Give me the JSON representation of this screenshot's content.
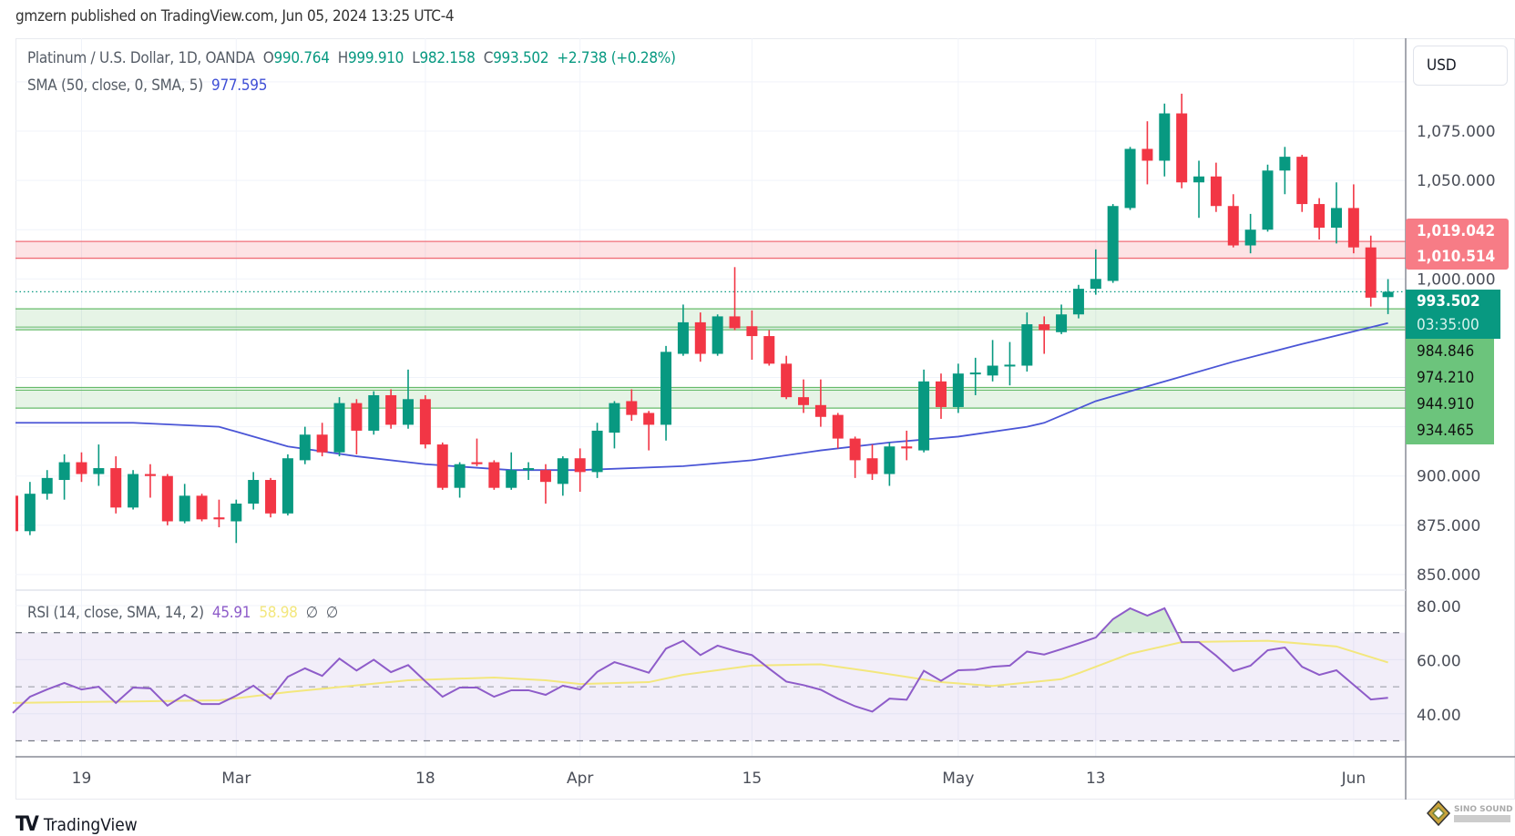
{
  "published": "gmzern published on TradingView.com, Jun 05, 2024 13:25 UTC-4",
  "legend": {
    "symbol": "Platinum / U.S. Dollar, 1D, OANDA",
    "o_label": "O",
    "o_value": "990.764",
    "h_label": "H",
    "h_value": "999.910",
    "l_label": "L",
    "l_value": "982.158",
    "c_label": "C",
    "c_value": "993.502",
    "change": "+2.738 (+0.28%)",
    "sma_label": "SMA (50, close, 0, SMA, 5)",
    "sma_value": "977.595",
    "rsi_label": "RSI (14, close, SMA, 14, 2)",
    "rsi_value": "45.91",
    "rsi_sma_value": "58.98",
    "rsi_extra1": "∅",
    "rsi_extra2": "∅"
  },
  "currency_button": "USD",
  "price_tags": {
    "resistance_top": "1,019.042",
    "resistance_bottom": "1,010.514",
    "last_price": "993.502",
    "countdown": "03:35:00",
    "support1_top": "984.846",
    "support1_bottom": "974.210",
    "support2_top": "944.910",
    "support2_bottom": "934.465"
  },
  "branding": {
    "tradingview": "TradingView",
    "watermark": "SINO SOUND"
  },
  "colors": {
    "up": "#089981",
    "down": "#f23645",
    "sma": "#4a55d6",
    "rsi": "#8e5cc9",
    "rsi_sma": "#f3e77d",
    "resistance": "#f7a1a8",
    "support": "#81c995"
  },
  "chart_data": [
    {
      "type": "candlestick",
      "symbol": "Platinum / U.S. Dollar, 1D, OANDA",
      "ylim": [
        845,
        1100
      ],
      "grid": true,
      "price_axis": {
        "ticks": [
          {
            "value": 1075,
            "label": "1,075.000"
          },
          {
            "value": 1050,
            "label": "1,050.000"
          },
          {
            "value": 1000,
            "label": "1,000.000"
          },
          {
            "value": 900,
            "label": "900.000"
          },
          {
            "value": 875,
            "label": "875.000"
          },
          {
            "value": 850,
            "label": "850.000"
          }
        ]
      },
      "time_axis": {
        "ticks": [
          {
            "date": "2024-02-19",
            "label": "19"
          },
          {
            "date": "2024-03-01",
            "label": "Mar"
          },
          {
            "date": "2024-03-18",
            "label": "18"
          },
          {
            "date": "2024-04-01",
            "label": "Apr"
          },
          {
            "date": "2024-04-15",
            "label": "15"
          },
          {
            "date": "2024-05-01",
            "label": "May"
          },
          {
            "date": "2024-05-13",
            "label": "13"
          },
          {
            "date": "2024-06-03",
            "label": "Jun"
          }
        ]
      },
      "zones": [
        {
          "kind": "resistance",
          "low": 1010.514,
          "high": 1019.042
        },
        {
          "kind": "support",
          "low": 974.21,
          "high": 984.846
        },
        {
          "kind": "support",
          "low": 934.465,
          "high": 944.91
        }
      ],
      "last_price": 993.502,
      "columns": [
        "date",
        "open",
        "high",
        "low",
        "close"
      ],
      "candles": [
        [
          "2024-02-13",
          890,
          893,
          871,
          872
        ],
        [
          "2024-02-14",
          872,
          897,
          870,
          891
        ],
        [
          "2024-02-15",
          891,
          903,
          888,
          899
        ],
        [
          "2024-02-16",
          898,
          911,
          888,
          907
        ],
        [
          "2024-02-19",
          907,
          912,
          897,
          901
        ],
        [
          "2024-02-20",
          901,
          916,
          895,
          904
        ],
        [
          "2024-02-21",
          904,
          910,
          881,
          884
        ],
        [
          "2024-02-22",
          884,
          903,
          883,
          901
        ],
        [
          "2024-02-23",
          901,
          906,
          889,
          900
        ],
        [
          "2024-02-26",
          900,
          901,
          875,
          877
        ],
        [
          "2024-02-27",
          877,
          896,
          876,
          890
        ],
        [
          "2024-02-28",
          890,
          891,
          877,
          878
        ],
        [
          "2024-02-29",
          879,
          888,
          874,
          878
        ],
        [
          "2024-03-01",
          877,
          888,
          866,
          886
        ],
        [
          "2024-03-04",
          886,
          902,
          883,
          898
        ],
        [
          "2024-03-05",
          898,
          899,
          879,
          881
        ],
        [
          "2024-03-06",
          881,
          911,
          880,
          909
        ],
        [
          "2024-03-07",
          908,
          925,
          906,
          921
        ],
        [
          "2024-03-08",
          921,
          927,
          910,
          912
        ],
        [
          "2024-03-11",
          912,
          940,
          910,
          937
        ],
        [
          "2024-03-12",
          937,
          939,
          911,
          923
        ],
        [
          "2024-03-13",
          923,
          943,
          921,
          941
        ],
        [
          "2024-03-14",
          941,
          944,
          924,
          926
        ],
        [
          "2024-03-15",
          926,
          954,
          924,
          939
        ],
        [
          "2024-03-18",
          939,
          941,
          914,
          916
        ],
        [
          "2024-03-19",
          916,
          917,
          893,
          894
        ],
        [
          "2024-03-20",
          894,
          907,
          889,
          906
        ],
        [
          "2024-03-21",
          907,
          919,
          905,
          906
        ],
        [
          "2024-03-22",
          907,
          908,
          893,
          894
        ],
        [
          "2024-03-25",
          894,
          912,
          893,
          903
        ],
        [
          "2024-03-26",
          903,
          907,
          898,
          904
        ],
        [
          "2024-03-27",
          903,
          906,
          886,
          897
        ],
        [
          "2024-03-28",
          896,
          910,
          890,
          909
        ],
        [
          "2024-04-01",
          909,
          914,
          892,
          902
        ],
        [
          "2024-04-02",
          902,
          927,
          899,
          923
        ],
        [
          "2024-04-03",
          922,
          938,
          914,
          937
        ],
        [
          "2024-04-04",
          938,
          944,
          928,
          931
        ],
        [
          "2024-04-05",
          932,
          933,
          913,
          926
        ],
        [
          "2024-04-08",
          926,
          966,
          918,
          963
        ],
        [
          "2024-04-09",
          962,
          987,
          961,
          978
        ],
        [
          "2024-04-10",
          978,
          983,
          958,
          962
        ],
        [
          "2024-04-11",
          962,
          982,
          961,
          981
        ],
        [
          "2024-04-12",
          981,
          1006,
          974,
          975
        ],
        [
          "2024-04-15",
          976,
          984,
          959,
          971
        ],
        [
          "2024-04-16",
          971,
          974,
          956,
          957
        ],
        [
          "2024-04-17",
          957,
          961,
          939,
          940
        ],
        [
          "2024-04-18",
          940,
          949,
          932,
          936
        ],
        [
          "2024-04-19",
          936,
          949,
          925,
          930
        ],
        [
          "2024-04-22",
          931,
          932,
          914,
          919
        ],
        [
          "2024-04-23",
          919,
          920,
          899,
          908
        ],
        [
          "2024-04-24",
          909,
          916,
          898,
          901
        ],
        [
          "2024-04-25",
          901,
          917,
          895,
          915
        ],
        [
          "2024-04-26",
          915,
          923,
          908,
          914
        ],
        [
          "2024-04-29",
          913,
          954,
          912,
          948
        ],
        [
          "2024-04-30",
          948,
          952,
          929,
          935
        ],
        [
          "2024-05-01",
          935,
          957,
          932,
          952
        ],
        [
          "2024-05-02",
          952,
          960,
          941,
          952.5
        ],
        [
          "2024-05-03",
          951,
          969,
          948,
          956
        ],
        [
          "2024-05-06",
          956,
          968,
          946,
          956.5
        ],
        [
          "2024-05-07",
          956,
          983,
          953,
          977
        ],
        [
          "2024-05-08",
          977,
          981,
          962,
          974
        ],
        [
          "2024-05-09",
          973,
          987,
          972,
          982
        ],
        [
          "2024-05-10",
          982,
          997,
          980,
          995
        ],
        [
          "2024-05-13",
          995,
          1015,
          992,
          1000
        ],
        [
          "2024-05-14",
          999,
          1038,
          998,
          1037
        ],
        [
          "2024-05-15",
          1036,
          1067,
          1035,
          1066
        ],
        [
          "2024-05-16",
          1066,
          1080,
          1048,
          1060
        ],
        [
          "2024-05-17",
          1060,
          1089,
          1052,
          1084
        ],
        [
          "2024-05-20",
          1084,
          1094,
          1046,
          1049
        ],
        [
          "2024-05-21",
          1049,
          1060,
          1031,
          1052
        ],
        [
          "2024-05-22",
          1052,
          1059,
          1034,
          1037
        ],
        [
          "2024-05-23",
          1037,
          1043,
          1016,
          1017
        ],
        [
          "2024-05-24",
          1017,
          1033,
          1013,
          1025
        ],
        [
          "2024-05-27",
          1025,
          1058,
          1024,
          1055
        ],
        [
          "2024-05-28",
          1055,
          1067,
          1043,
          1062
        ],
        [
          "2024-05-29",
          1062,
          1063,
          1034,
          1038
        ],
        [
          "2024-05-30",
          1038,
          1041,
          1020,
          1026
        ],
        [
          "2024-05-31",
          1026,
          1049,
          1018,
          1036
        ],
        [
          "2024-06-03",
          1036,
          1048,
          1013,
          1016
        ],
        [
          "2024-06-04",
          1016,
          1022,
          986,
          990.5
        ],
        [
          "2024-06-05",
          990.764,
          999.91,
          982.158,
          993.502
        ]
      ],
      "sma50": [
        [
          "2024-02-13",
          927
        ],
        [
          "2024-02-22",
          927
        ],
        [
          "2024-02-29",
          925
        ],
        [
          "2024-03-06",
          915
        ],
        [
          "2024-03-12",
          910
        ],
        [
          "2024-03-18",
          906
        ],
        [
          "2024-03-25",
          903
        ],
        [
          "2024-04-01",
          903
        ],
        [
          "2024-04-09",
          905
        ],
        [
          "2024-04-15",
          908
        ],
        [
          "2024-04-19",
          913
        ],
        [
          "2024-04-25",
          917
        ],
        [
          "2024-05-01",
          920
        ],
        [
          "2024-05-07",
          925
        ],
        [
          "2024-05-08",
          927
        ],
        [
          "2024-05-13",
          938
        ],
        [
          "2024-05-17",
          948
        ],
        [
          "2024-05-23",
          958
        ],
        [
          "2024-05-29",
          967
        ],
        [
          "2024-06-05",
          977.595
        ]
      ]
    },
    {
      "type": "line",
      "name": "RSI (14, close, SMA, 14, 2)",
      "ylim": [
        25,
        85
      ],
      "bands": {
        "upper": 70,
        "middle": 50,
        "lower": 30
      },
      "axis_ticks": [
        {
          "value": 80,
          "label": "80.00"
        },
        {
          "value": 60,
          "label": "60.00"
        },
        {
          "value": 40,
          "label": "40.00"
        }
      ],
      "rsi": [
        40.3,
        46.3,
        49,
        51.4,
        49,
        50,
        44,
        49.7,
        49.4,
        43,
        47,
        43.6,
        43.6,
        46.7,
        50.4,
        45.6,
        53.7,
        56.8,
        54,
        60.4,
        56,
        60,
        55.4,
        58,
        52,
        46.3,
        49.7,
        49.7,
        46.3,
        48.7,
        48.7,
        47,
        50.4,
        49,
        55.5,
        59.1,
        57.2,
        55.2,
        64.1,
        67,
        61.7,
        65.2,
        63.3,
        61.7,
        56.7,
        51.9,
        50.6,
        48.9,
        45.6,
        42.8,
        40.8,
        45.6,
        45.2,
        55.9,
        52.2,
        56.1,
        56.3,
        57.4,
        57.8,
        63,
        61.9,
        63.9,
        66,
        68.2,
        75,
        79,
        76.3,
        79,
        66.5,
        66.5,
        61.5,
        55.8,
        57.8,
        63.5,
        64.5,
        57.4,
        54.4,
        56.1,
        50.7,
        45.3,
        45.91
      ],
      "rsi_sma": [
        [
          "2024-02-13",
          44
        ],
        [
          "2024-02-29",
          45
        ],
        [
          "2024-03-06",
          48
        ],
        [
          "2024-03-15",
          52.4
        ],
        [
          "2024-03-22",
          53.4
        ],
        [
          "2024-03-27",
          52.4
        ],
        [
          "2024-04-01",
          51
        ],
        [
          "2024-04-05",
          51.7
        ],
        [
          "2024-04-09",
          54.4
        ],
        [
          "2024-04-15",
          57.8
        ],
        [
          "2024-04-19",
          58.3
        ],
        [
          "2024-04-24",
          55.6
        ],
        [
          "2024-04-30",
          51.7
        ],
        [
          "2024-05-03",
          50.3
        ],
        [
          "2024-05-09",
          52.8
        ],
        [
          "2024-05-10",
          55
        ],
        [
          "2024-05-15",
          62.2
        ],
        [
          "2024-05-20",
          66.5
        ],
        [
          "2024-05-27",
          67
        ],
        [
          "2024-05-31",
          64.9
        ],
        [
          "2024-06-05",
          58.98
        ]
      ]
    }
  ]
}
